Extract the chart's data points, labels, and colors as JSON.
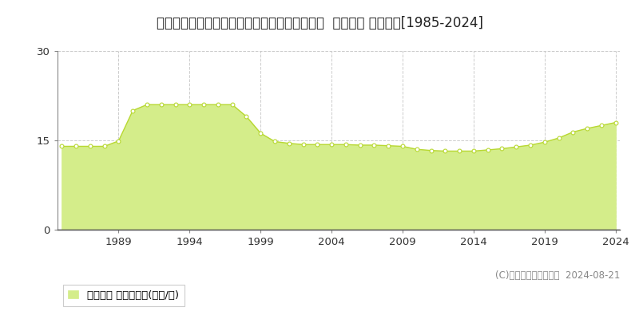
{
  "title": "北海道札幌市北区篠路４条８丁目２０９番３１  地価公示 地価推移[1985-2024]",
  "years": [
    1985,
    1986,
    1987,
    1988,
    1989,
    1990,
    1991,
    1992,
    1993,
    1994,
    1995,
    1996,
    1997,
    1998,
    1999,
    2000,
    2001,
    2002,
    2003,
    2004,
    2005,
    2006,
    2007,
    2008,
    2009,
    2010,
    2011,
    2012,
    2013,
    2014,
    2015,
    2016,
    2017,
    2018,
    2019,
    2020,
    2021,
    2022,
    2023,
    2024
  ],
  "values": [
    14.0,
    14.0,
    14.0,
    14.0,
    14.9,
    20.0,
    21.0,
    21.0,
    21.0,
    21.0,
    21.0,
    21.0,
    21.0,
    19.0,
    16.2,
    14.8,
    14.5,
    14.3,
    14.3,
    14.3,
    14.3,
    14.2,
    14.2,
    14.1,
    14.0,
    13.5,
    13.3,
    13.2,
    13.2,
    13.2,
    13.4,
    13.6,
    13.9,
    14.2,
    14.7,
    15.4,
    16.4,
    17.0,
    17.5,
    18.0
  ],
  "fill_color": "#d4ed8a",
  "line_color": "#b8d832",
  "marker_facecolor": "#ffffff",
  "marker_edgecolor": "#b8d832",
  "grid_color": "#cccccc",
  "background_color": "#ffffff",
  "ylim": [
    0,
    30
  ],
  "yticks": [
    0,
    15,
    30
  ],
  "xtick_years": [
    1989,
    1994,
    1999,
    2004,
    2009,
    2014,
    2019,
    2024
  ],
  "legend_label": "地価公示 平均坪単価(万円/坪)",
  "copyright_text": "(C)土地価格ドットコム  2024-08-21",
  "title_fontsize": 12,
  "tick_fontsize": 9.5,
  "legend_fontsize": 9.5,
  "copyright_fontsize": 8.5
}
